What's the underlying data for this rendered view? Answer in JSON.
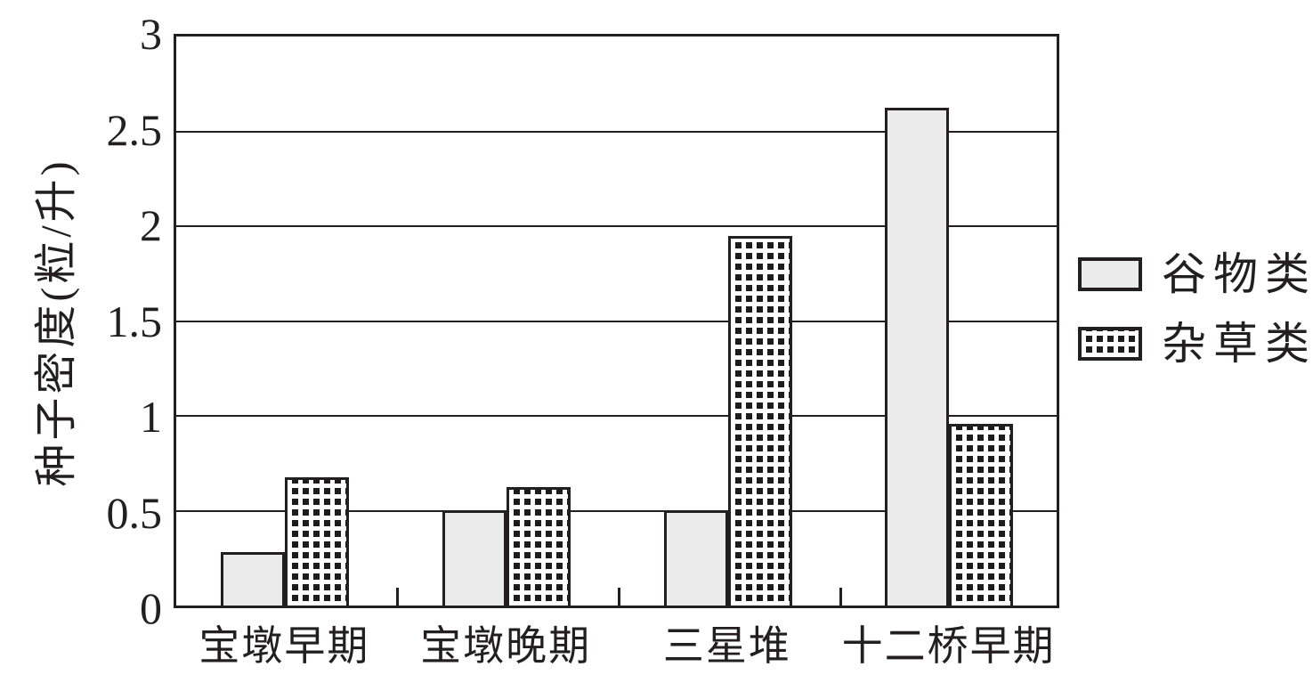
{
  "chart_data": {
    "type": "bar",
    "title": "",
    "ylabel": "种子密度(粒/升)",
    "xlabel": "",
    "categories": [
      "宝墩早期",
      "宝墩晚期",
      "三星堆",
      "十二桥早期"
    ],
    "series": [
      {
        "name": "谷物类",
        "pattern": "solid",
        "fill": "#ebebeb",
        "values": [
          0.28,
          0.5,
          0.5,
          2.6
        ]
      },
      {
        "name": "杂草类",
        "pattern": "checkered",
        "fill": "#ffffff",
        "values": [
          0.67,
          0.62,
          1.93,
          0.95
        ]
      }
    ],
    "ylim": [
      0,
      3
    ],
    "yticks": [
      0,
      0.5,
      1,
      1.5,
      2,
      2.5,
      3
    ],
    "grid": "horizontal-solid",
    "legend_position": "center-right"
  },
  "colors": {
    "background": "#ffffff",
    "axis": "#231f20",
    "bar_gray": "#ebebeb",
    "pattern_black": "#1c1c1c",
    "text": "#231f20"
  }
}
